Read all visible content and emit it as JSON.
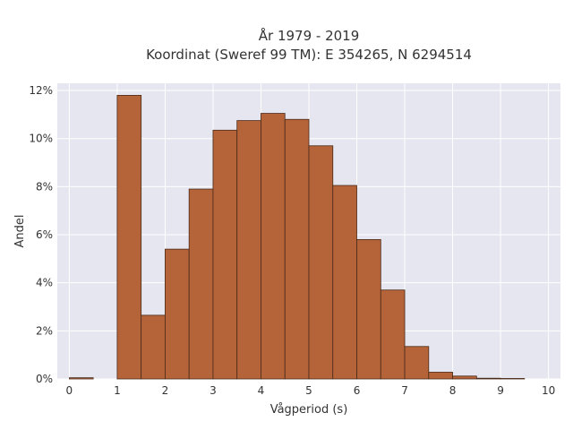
{
  "chart_data": {
    "type": "bar",
    "title_lines": [
      "År 1979 - 2019",
      "Koordinat (Sweref 99 TM): E 354265, N 6294514"
    ],
    "xlabel": "Vågperiod (s)",
    "ylabel": "Andel",
    "xlim": [
      -0.25,
      10.25
    ],
    "ylim": [
      0,
      12.3
    ],
    "x_ticks": [
      0,
      1,
      2,
      3,
      4,
      5,
      6,
      7,
      8,
      9,
      10
    ],
    "x_tick_labels": [
      "0",
      "1",
      "2",
      "3",
      "4",
      "5",
      "6",
      "7",
      "8",
      "9",
      "10"
    ],
    "y_ticks": [
      0,
      2,
      4,
      6,
      8,
      10,
      12
    ],
    "y_tick_labels": [
      "0%",
      "2%",
      "4%",
      "6%",
      "8%",
      "10%",
      "12%"
    ],
    "bin_width": 0.5,
    "bin_starts": [
      0,
      0.5,
      1,
      1.5,
      2,
      2.5,
      3,
      3.5,
      4,
      4.5,
      5,
      5.5,
      6,
      6.5,
      7,
      7.5,
      8,
      8.5,
      9,
      9.5
    ],
    "values": [
      0.05,
      0,
      11.8,
      2.65,
      5.4,
      7.9,
      10.35,
      10.75,
      11.05,
      10.8,
      9.7,
      8.05,
      5.8,
      3.7,
      1.35,
      0.28,
      0.12,
      0.03,
      0.02,
      0
    ],
    "unit": "%",
    "grid": true,
    "colors": {
      "bar_fill": "#b5643a",
      "bar_stroke": "#4a2a18",
      "plot_background": "#e5e6ef",
      "grid": "#ffffff"
    }
  }
}
